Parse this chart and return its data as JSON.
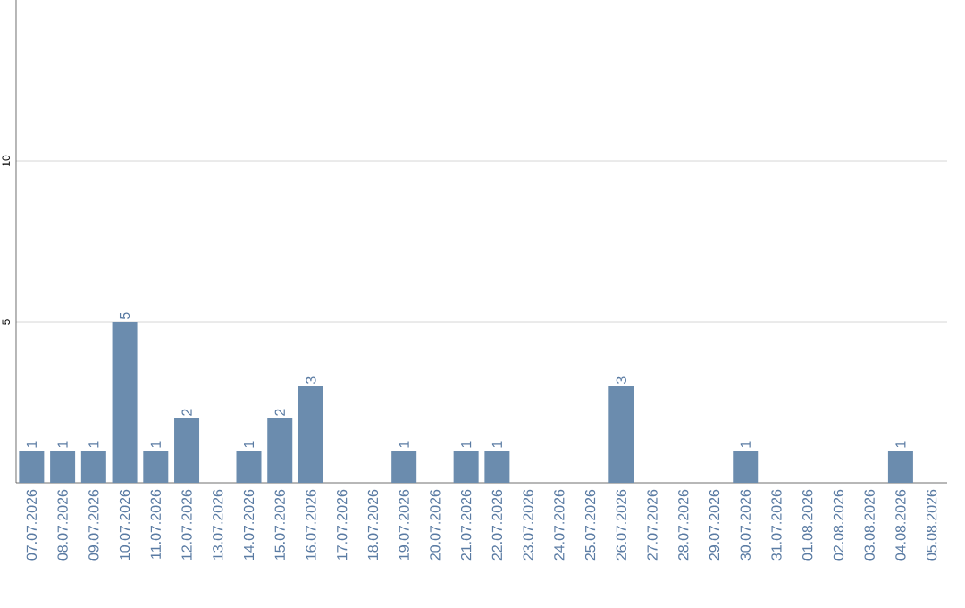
{
  "chart_data": {
    "type": "bar",
    "categories": [
      "07.07.2026",
      "08.07.2026",
      "09.07.2026",
      "10.07.2026",
      "11.07.2026",
      "12.07.2026",
      "13.07.2026",
      "14.07.2026",
      "15.07.2026",
      "16.07.2026",
      "17.07.2026",
      "18.07.2026",
      "19.07.2026",
      "20.07.2026",
      "21.07.2026",
      "22.07.2026",
      "23.07.2026",
      "24.07.2026",
      "25.07.2026",
      "26.07.2026",
      "27.07.2026",
      "28.07.2026",
      "29.07.2026",
      "30.07.2026",
      "31.07.2026",
      "01.08.2026",
      "02.08.2026",
      "03.08.2026",
      "04.08.2026",
      "05.08.2026"
    ],
    "values": [
      1,
      1,
      1,
      5,
      1,
      2,
      0,
      1,
      2,
      3,
      0,
      0,
      1,
      0,
      1,
      1,
      0,
      0,
      0,
      3,
      0,
      0,
      0,
      1,
      0,
      0,
      0,
      0,
      1,
      0
    ],
    "value_labels": [
      "1",
      "1",
      "1",
      "5",
      "1",
      "2",
      null,
      "1",
      "2",
      "3",
      null,
      null,
      "1",
      null,
      "1",
      "1",
      null,
      null,
      null,
      "3",
      null,
      null,
      null,
      "1",
      null,
      null,
      null,
      null,
      "1",
      null
    ],
    "color": "#6b8cae",
    "ylim": [
      0,
      15
    ],
    "yticks": [
      5,
      10
    ],
    "grid": "y"
  }
}
